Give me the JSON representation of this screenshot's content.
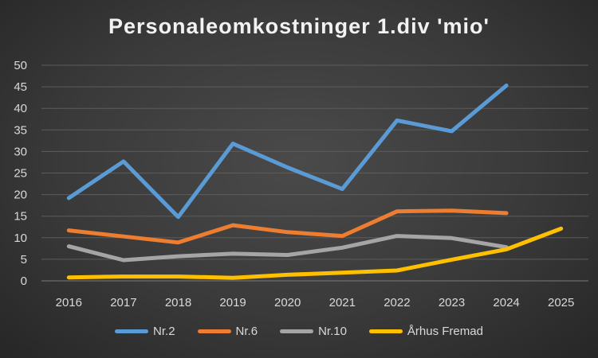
{
  "chart_data": {
    "type": "line",
    "title": "Personaleomkostninger 1.div 'mio'",
    "xlabel": "",
    "ylabel": "",
    "categories": [
      "2016",
      "2017",
      "2018",
      "2019",
      "2020",
      "2021",
      "2022",
      "2023",
      "2024",
      "2025"
    ],
    "yticks": [
      "0",
      "5",
      "10",
      "15",
      "20",
      "25",
      "30",
      "35",
      "40",
      "45",
      "50"
    ],
    "ylim": [
      0,
      50
    ],
    "grid": true,
    "legend_position": "bottom",
    "series": [
      {
        "name": "Nr.2",
        "color": "#5b9bd5",
        "values": [
          19.2,
          27.7,
          14.8,
          31.8,
          26.3,
          21.3,
          37.2,
          34.7,
          45.3,
          null
        ]
      },
      {
        "name": "Nr.6",
        "color": "#ed7d31",
        "values": [
          11.7,
          10.3,
          8.9,
          12.9,
          11.3,
          10.4,
          16.1,
          16.3,
          15.7,
          null
        ]
      },
      {
        "name": "Nr.10",
        "color": "#a5a5a5",
        "values": [
          8.0,
          4.8,
          5.7,
          6.3,
          6.0,
          7.7,
          10.4,
          9.9,
          7.8,
          null
        ]
      },
      {
        "name": "Århus Fremad",
        "color": "#ffc000",
        "values": [
          0.8,
          1.0,
          1.0,
          0.7,
          1.4,
          1.9,
          2.4,
          4.9,
          7.3,
          12.1
        ]
      }
    ]
  }
}
